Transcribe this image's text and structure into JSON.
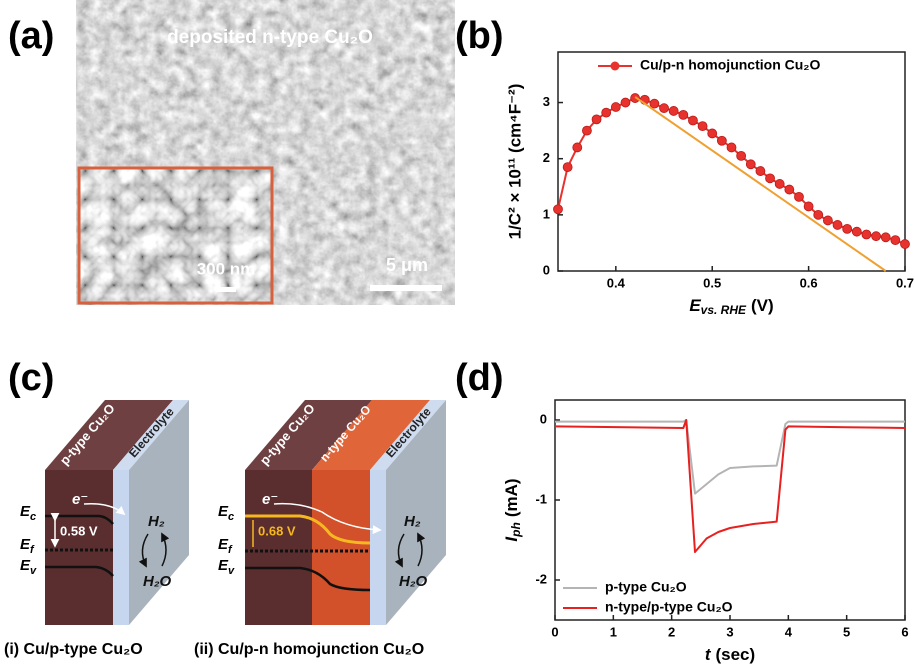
{
  "panel_a": {
    "label": "(a)",
    "caption": "deposited n-type Cu₂O",
    "inset_scale": "300 nm",
    "scale": "5 μm"
  },
  "panel_c": {
    "label": "(c)",
    "diagrams": [
      {
        "layers": [
          "p-type Cu₂O",
          "Electrolyte"
        ],
        "electron": "e⁻",
        "levels": [
          {
            "main": "E",
            "sub": "c"
          },
          {
            "main": "E",
            "sub": "f"
          },
          {
            "main": "E",
            "sub": "v"
          }
        ],
        "barrier": "0.58 V",
        "products": [
          "H₂",
          "H₂O"
        ],
        "caption": "(i) Cu/p-type Cu₂O"
      },
      {
        "layers": [
          "p-type Cu₂O",
          "n-type Cu₂O",
          "Electrolyte"
        ],
        "electron": "e⁻",
        "levels": [
          {
            "main": "E",
            "sub": "c"
          },
          {
            "main": "E",
            "sub": "f"
          },
          {
            "main": "E",
            "sub": "v"
          }
        ],
        "barrier": "0.68 V",
        "products": [
          "H₂",
          "H₂O"
        ],
        "caption": "(ii) Cu/p-n homojunction Cu₂O"
      }
    ]
  },
  "chart_data": [
    {
      "label": "(b)",
      "type": "line",
      "markers": true,
      "legend": "upper right",
      "xlabel": {
        "main": "E",
        "sub": "vs. RHE",
        "unit": "(V)"
      },
      "ylabel": "1/C² × 10¹¹ (cm⁴F⁻²)",
      "xlim": [
        0.34,
        0.7
      ],
      "xticks": [
        0.4,
        0.5,
        0.6,
        0.7
      ],
      "ylim": [
        0,
        3.9
      ],
      "yticks": [
        0,
        1,
        2,
        3
      ],
      "series": [
        {
          "name": "Cu/p-n homojunction Cu₂O",
          "color": "#e8322e",
          "x": [
            0.34,
            0.35,
            0.36,
            0.37,
            0.38,
            0.39,
            0.4,
            0.41,
            0.42,
            0.43,
            0.44,
            0.45,
            0.46,
            0.47,
            0.48,
            0.49,
            0.5,
            0.51,
            0.52,
            0.53,
            0.54,
            0.55,
            0.56,
            0.57,
            0.58,
            0.59,
            0.6,
            0.61,
            0.62,
            0.63,
            0.64,
            0.65,
            0.66,
            0.67,
            0.68,
            0.69,
            0.7
          ],
          "values": [
            1.1,
            1.85,
            2.2,
            2.5,
            2.7,
            2.82,
            2.92,
            3.0,
            3.08,
            3.05,
            2.98,
            2.9,
            2.85,
            2.78,
            2.68,
            2.58,
            2.45,
            2.32,
            2.2,
            2.05,
            1.9,
            1.78,
            1.65,
            1.55,
            1.45,
            1.32,
            1.15,
            1.0,
            0.9,
            0.82,
            0.75,
            0.7,
            0.65,
            0.62,
            0.6,
            0.55,
            0.48
          ]
        }
      ],
      "fit": {
        "x": [
          0.42,
          0.68
        ],
        "values": [
          3.1,
          0
        ],
        "color": "#f0a030"
      }
    },
    {
      "label": "(d)",
      "type": "line",
      "markers": false,
      "legend": "lower left",
      "xlabel": {
        "main": "t",
        "unit": "(sec)"
      },
      "ylabel": {
        "main": "I",
        "sub": "ph",
        "unit": "(mA)"
      },
      "xlim": [
        0,
        6
      ],
      "xticks": [
        0,
        1,
        2,
        3,
        4,
        5,
        6
      ],
      "ylim": [
        -2.5,
        0.25
      ],
      "yticks": [
        0,
        -1,
        -2
      ],
      "series": [
        {
          "name": "p-type Cu₂O",
          "color": "#b4b4b4",
          "x": [
            0,
            2.2,
            2.25,
            2.4,
            2.6,
            2.8,
            3.0,
            3.4,
            3.8,
            3.95,
            4.0,
            5,
            6
          ],
          "values": [
            -0.02,
            -0.02,
            0,
            -0.92,
            -0.8,
            -0.68,
            -0.6,
            -0.58,
            -0.57,
            -0.05,
            -0.02,
            -0.02,
            -0.02
          ]
        },
        {
          "name": "n-type/p-type Cu₂O",
          "color": "#e82020",
          "x": [
            0,
            2.2,
            2.25,
            2.4,
            2.6,
            2.8,
            3.0,
            3.4,
            3.8,
            3.95,
            4.0,
            5,
            6
          ],
          "values": [
            -0.08,
            -0.1,
            0,
            -1.65,
            -1.48,
            -1.4,
            -1.35,
            -1.3,
            -1.27,
            -0.12,
            -0.08,
            -0.09,
            -0.1
          ]
        }
      ]
    }
  ]
}
